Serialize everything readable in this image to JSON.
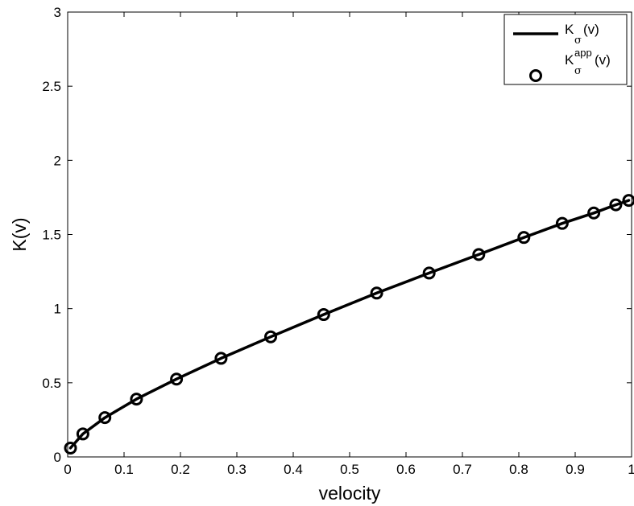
{
  "chart_data": {
    "type": "line",
    "title": "",
    "xlabel": "velocity",
    "ylabel": "K(v)",
    "xlim": [
      0,
      1
    ],
    "ylim": [
      0,
      3
    ],
    "xticks": [
      0,
      0.1,
      0.2,
      0.3,
      0.4,
      0.5,
      0.6,
      0.7,
      0.8,
      0.9,
      1
    ],
    "xtick_labels": [
      "0",
      "0.1",
      "0.2",
      "0.3",
      "0.4",
      "0.5",
      "0.6",
      "0.7",
      "0.8",
      "0.9",
      "1"
    ],
    "yticks": [
      0,
      0.5,
      1,
      1.5,
      2,
      2.5,
      3
    ],
    "ytick_labels": [
      "0",
      "0.5",
      "1",
      "1.5",
      "2",
      "2.5",
      "3"
    ],
    "grid": false,
    "legend_position": "top-right",
    "series": [
      {
        "style": "solid-line",
        "color": "#000000",
        "legend": {
          "main": "K",
          "sub": "σ",
          "sup": "",
          "suffix": "(v)"
        },
        "x": [
          0.005,
          0.027,
          0.066,
          0.122,
          0.193,
          0.272,
          0.36,
          0.454,
          0.548,
          0.641,
          0.729,
          0.809,
          0.877,
          0.933,
          0.972,
          0.995
        ],
        "y": [
          0.06,
          0.155,
          0.265,
          0.39,
          0.525,
          0.665,
          0.81,
          0.96,
          1.105,
          1.24,
          1.365,
          1.48,
          1.575,
          1.645,
          1.7,
          1.73
        ]
      },
      {
        "style": "open-circle-markers",
        "color": "#000000",
        "legend": {
          "main": "K",
          "sub": "σ",
          "sup": "app",
          "suffix": "(v)"
        },
        "x": [
          0.005,
          0.027,
          0.066,
          0.122,
          0.193,
          0.272,
          0.36,
          0.454,
          0.548,
          0.641,
          0.729,
          0.809,
          0.877,
          0.933,
          0.972,
          0.995
        ],
        "y": [
          0.06,
          0.155,
          0.265,
          0.39,
          0.525,
          0.665,
          0.81,
          0.96,
          1.105,
          1.24,
          1.365,
          1.48,
          1.575,
          1.645,
          1.7,
          1.73
        ]
      }
    ]
  }
}
